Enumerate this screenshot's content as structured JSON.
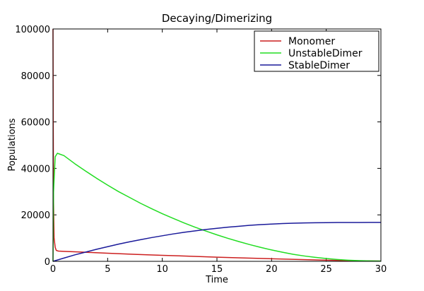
{
  "chart_data": {
    "type": "line",
    "title": "Decaying/Dimerizing",
    "xlabel": "Time",
    "ylabel": "Populations",
    "xlim": [
      0,
      30
    ],
    "ylim": [
      0,
      100000
    ],
    "xticks": [
      0,
      5,
      10,
      15,
      20,
      25,
      30
    ],
    "yticks": [
      0,
      20000,
      40000,
      60000,
      80000,
      100000
    ],
    "grid": false,
    "legend_position": "top-right",
    "series": [
      {
        "name": "Monomer",
        "color": "#cc1f1f",
        "x": [
          0,
          0.02,
          0.05,
          0.1,
          0.2,
          0.3,
          0.5,
          1,
          2,
          3,
          5,
          7.5,
          10,
          12.5,
          15,
          17.5,
          20,
          22.5,
          25,
          27.5,
          30
        ],
        "y": [
          100000,
          60000,
          25000,
          10000,
          6000,
          4700,
          4400,
          4300,
          4100,
          3900,
          3500,
          3000,
          2600,
          2200,
          1800,
          1450,
          1100,
          800,
          500,
          250,
          100
        ]
      },
      {
        "name": "UnstableDimer",
        "color": "#22dd22",
        "x": [
          0,
          0.05,
          0.2,
          0.4,
          1,
          2,
          3,
          4,
          5,
          6,
          7,
          8,
          9,
          10,
          11,
          12,
          13,
          14,
          15,
          16,
          17,
          18,
          19,
          20,
          21,
          22,
          23,
          24,
          25,
          26,
          27,
          28,
          29,
          30
        ],
        "y": [
          0,
          30000,
          45000,
          46500,
          45500,
          42000,
          38800,
          35700,
          32800,
          30000,
          27500,
          25000,
          22700,
          20500,
          18500,
          16500,
          14700,
          13000,
          11400,
          9900,
          8500,
          7200,
          6000,
          4900,
          3900,
          3000,
          2300,
          1700,
          1200,
          800,
          500,
          300,
          200,
          100
        ]
      },
      {
        "name": "StableDimer",
        "color": "#1a1a9a",
        "x": [
          0,
          1,
          2,
          3,
          4,
          5,
          6,
          7,
          8,
          9,
          10,
          11,
          12,
          13,
          14,
          15,
          16,
          17,
          18,
          19,
          20,
          21,
          22,
          23,
          24,
          25,
          26,
          27,
          28,
          29,
          30
        ],
        "y": [
          0,
          1400,
          2800,
          4000,
          5200,
          6300,
          7400,
          8400,
          9300,
          10200,
          11000,
          11800,
          12500,
          13100,
          13700,
          14200,
          14700,
          15100,
          15500,
          15800,
          16050,
          16250,
          16400,
          16520,
          16600,
          16660,
          16700,
          16720,
          16730,
          16740,
          16745
        ]
      }
    ]
  }
}
